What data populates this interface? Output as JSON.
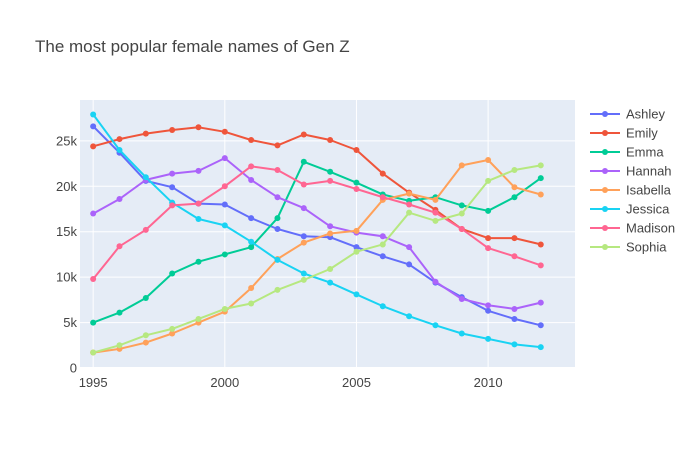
{
  "chart_data": {
    "type": "line",
    "title": "The most popular female names of Gen Z",
    "xlabel": "",
    "ylabel": "",
    "x": [
      1995,
      1996,
      1997,
      1998,
      1999,
      2000,
      2001,
      2002,
      2003,
      2004,
      2005,
      2006,
      2007,
      2008,
      2009,
      2010,
      2011,
      2012
    ],
    "xlim": [
      1994.5,
      2013.3
    ],
    "ylim": [
      0,
      29500
    ],
    "x_ticks": [
      {
        "value": 1995,
        "label": "1995"
      },
      {
        "value": 2000,
        "label": "2000"
      },
      {
        "value": 2005,
        "label": "2005"
      },
      {
        "value": 2010,
        "label": "2010"
      }
    ],
    "y_ticks": [
      {
        "value": 0,
        "label": "0"
      },
      {
        "value": 5000,
        "label": "5k"
      },
      {
        "value": 10000,
        "label": "10k"
      },
      {
        "value": 15000,
        "label": "15k"
      },
      {
        "value": 20000,
        "label": "20k"
      },
      {
        "value": 25000,
        "label": "25k"
      }
    ],
    "grid": true,
    "legend_position": "right",
    "plot_background": "#e5ecf6",
    "series": [
      {
        "name": "Ashley",
        "color": "#636efa",
        "values": [
          26600,
          23700,
          20600,
          19900,
          18100,
          18000,
          16500,
          15300,
          14500,
          14400,
          13300,
          12300,
          11400,
          9400,
          7800,
          6300,
          5400,
          4700
        ]
      },
      {
        "name": "Emily",
        "color": "#ef553b",
        "values": [
          24400,
          25200,
          25800,
          26200,
          26500,
          26000,
          25100,
          24500,
          25700,
          25100,
          24000,
          21400,
          19300,
          17400,
          15300,
          14300,
          14300,
          13600
        ]
      },
      {
        "name": "Emma",
        "color": "#00cc96",
        "values": [
          5000,
          6100,
          7700,
          10400,
          11700,
          12500,
          13300,
          16500,
          22700,
          21600,
          20400,
          19100,
          18400,
          18800,
          17900,
          17300,
          18800,
          20900
        ]
      },
      {
        "name": "Hannah",
        "color": "#ab63fa",
        "values": [
          17000,
          18600,
          20700,
          21400,
          21700,
          23100,
          20700,
          18800,
          17600,
          15600,
          14900,
          14500,
          13300,
          9500,
          7600,
          6900,
          6500,
          7200
        ]
      },
      {
        "name": "Isabella",
        "color": "#ffa15a",
        "values": [
          1700,
          2100,
          2800,
          3800,
          5000,
          6200,
          8800,
          12000,
          13800,
          14800,
          15100,
          18500,
          19200,
          18500,
          22300,
          22900,
          19900,
          19100
        ]
      },
      {
        "name": "Jessica",
        "color": "#19d3f3",
        "values": [
          27900,
          24000,
          21000,
          18200,
          16400,
          15700,
          13900,
          11900,
          10400,
          9400,
          8100,
          6800,
          5700,
          4700,
          3800,
          3200,
          2600,
          2300
        ]
      },
      {
        "name": "Madison",
        "color": "#ff6692",
        "values": [
          9800,
          13400,
          15200,
          17900,
          18100,
          20000,
          22200,
          21800,
          20200,
          20600,
          19700,
          18800,
          18000,
          17100,
          15300,
          13200,
          12300,
          11300
        ]
      },
      {
        "name": "Sophia",
        "color": "#b6e880",
        "values": [
          1700,
          2500,
          3600,
          4300,
          5400,
          6500,
          7100,
          8600,
          9700,
          10900,
          12800,
          13600,
          17100,
          16200,
          17000,
          20600,
          21800,
          22300
        ]
      }
    ]
  }
}
